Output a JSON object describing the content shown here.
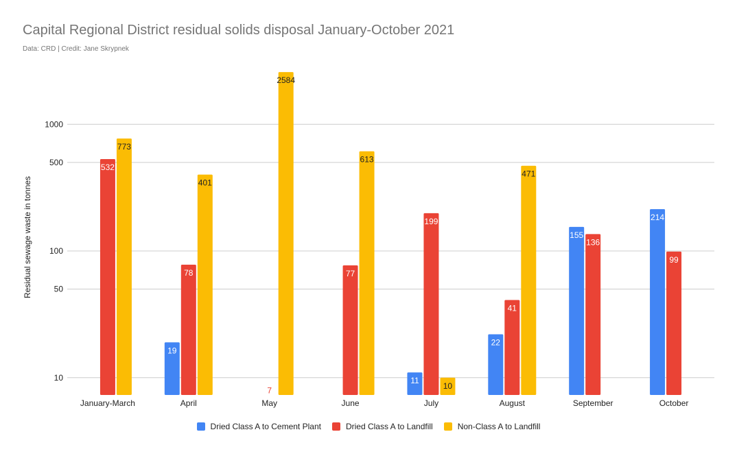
{
  "chart_data": {
    "type": "bar",
    "title": "Capital Regional District residual solids disposal January-October 2021",
    "subtitle": "Data: CRD | Credit: Jane Skrypnek",
    "ylabel": "Residual sewage waste in tonnes",
    "xlabel": "",
    "yscale": "log",
    "ylim": [
      7.3,
      3200
    ],
    "yticks": [
      10,
      50,
      100,
      500,
      1000
    ],
    "grid": true,
    "legend_position": "bottom",
    "categories": [
      "January-March",
      "April",
      "May",
      "June",
      "July",
      "August",
      "September",
      "October"
    ],
    "series": [
      {
        "name": "Dried Class A to Cement Plant",
        "color": "#4285F4",
        "values": [
          null,
          19,
          null,
          null,
          11,
          22,
          155,
          214
        ],
        "labels": [
          "",
          "19",
          "",
          "",
          "11",
          "22",
          "155",
          "214"
        ]
      },
      {
        "name": "Dried Class A to Landfill",
        "color": "#EA4335",
        "values": [
          532,
          78,
          7,
          77,
          199,
          41,
          136,
          99
        ],
        "labels": [
          "532",
          "78",
          "7",
          "77",
          "199",
          "41",
          "136",
          "99"
        ]
      },
      {
        "name": "Non-Class A to Landfill",
        "color": "#FBBC04",
        "values": [
          773,
          401,
          2584,
          613,
          10,
          471,
          null,
          null
        ],
        "labels": [
          "773",
          "401",
          "2584",
          "613",
          "10",
          "471",
          "",
          ""
        ]
      }
    ]
  }
}
